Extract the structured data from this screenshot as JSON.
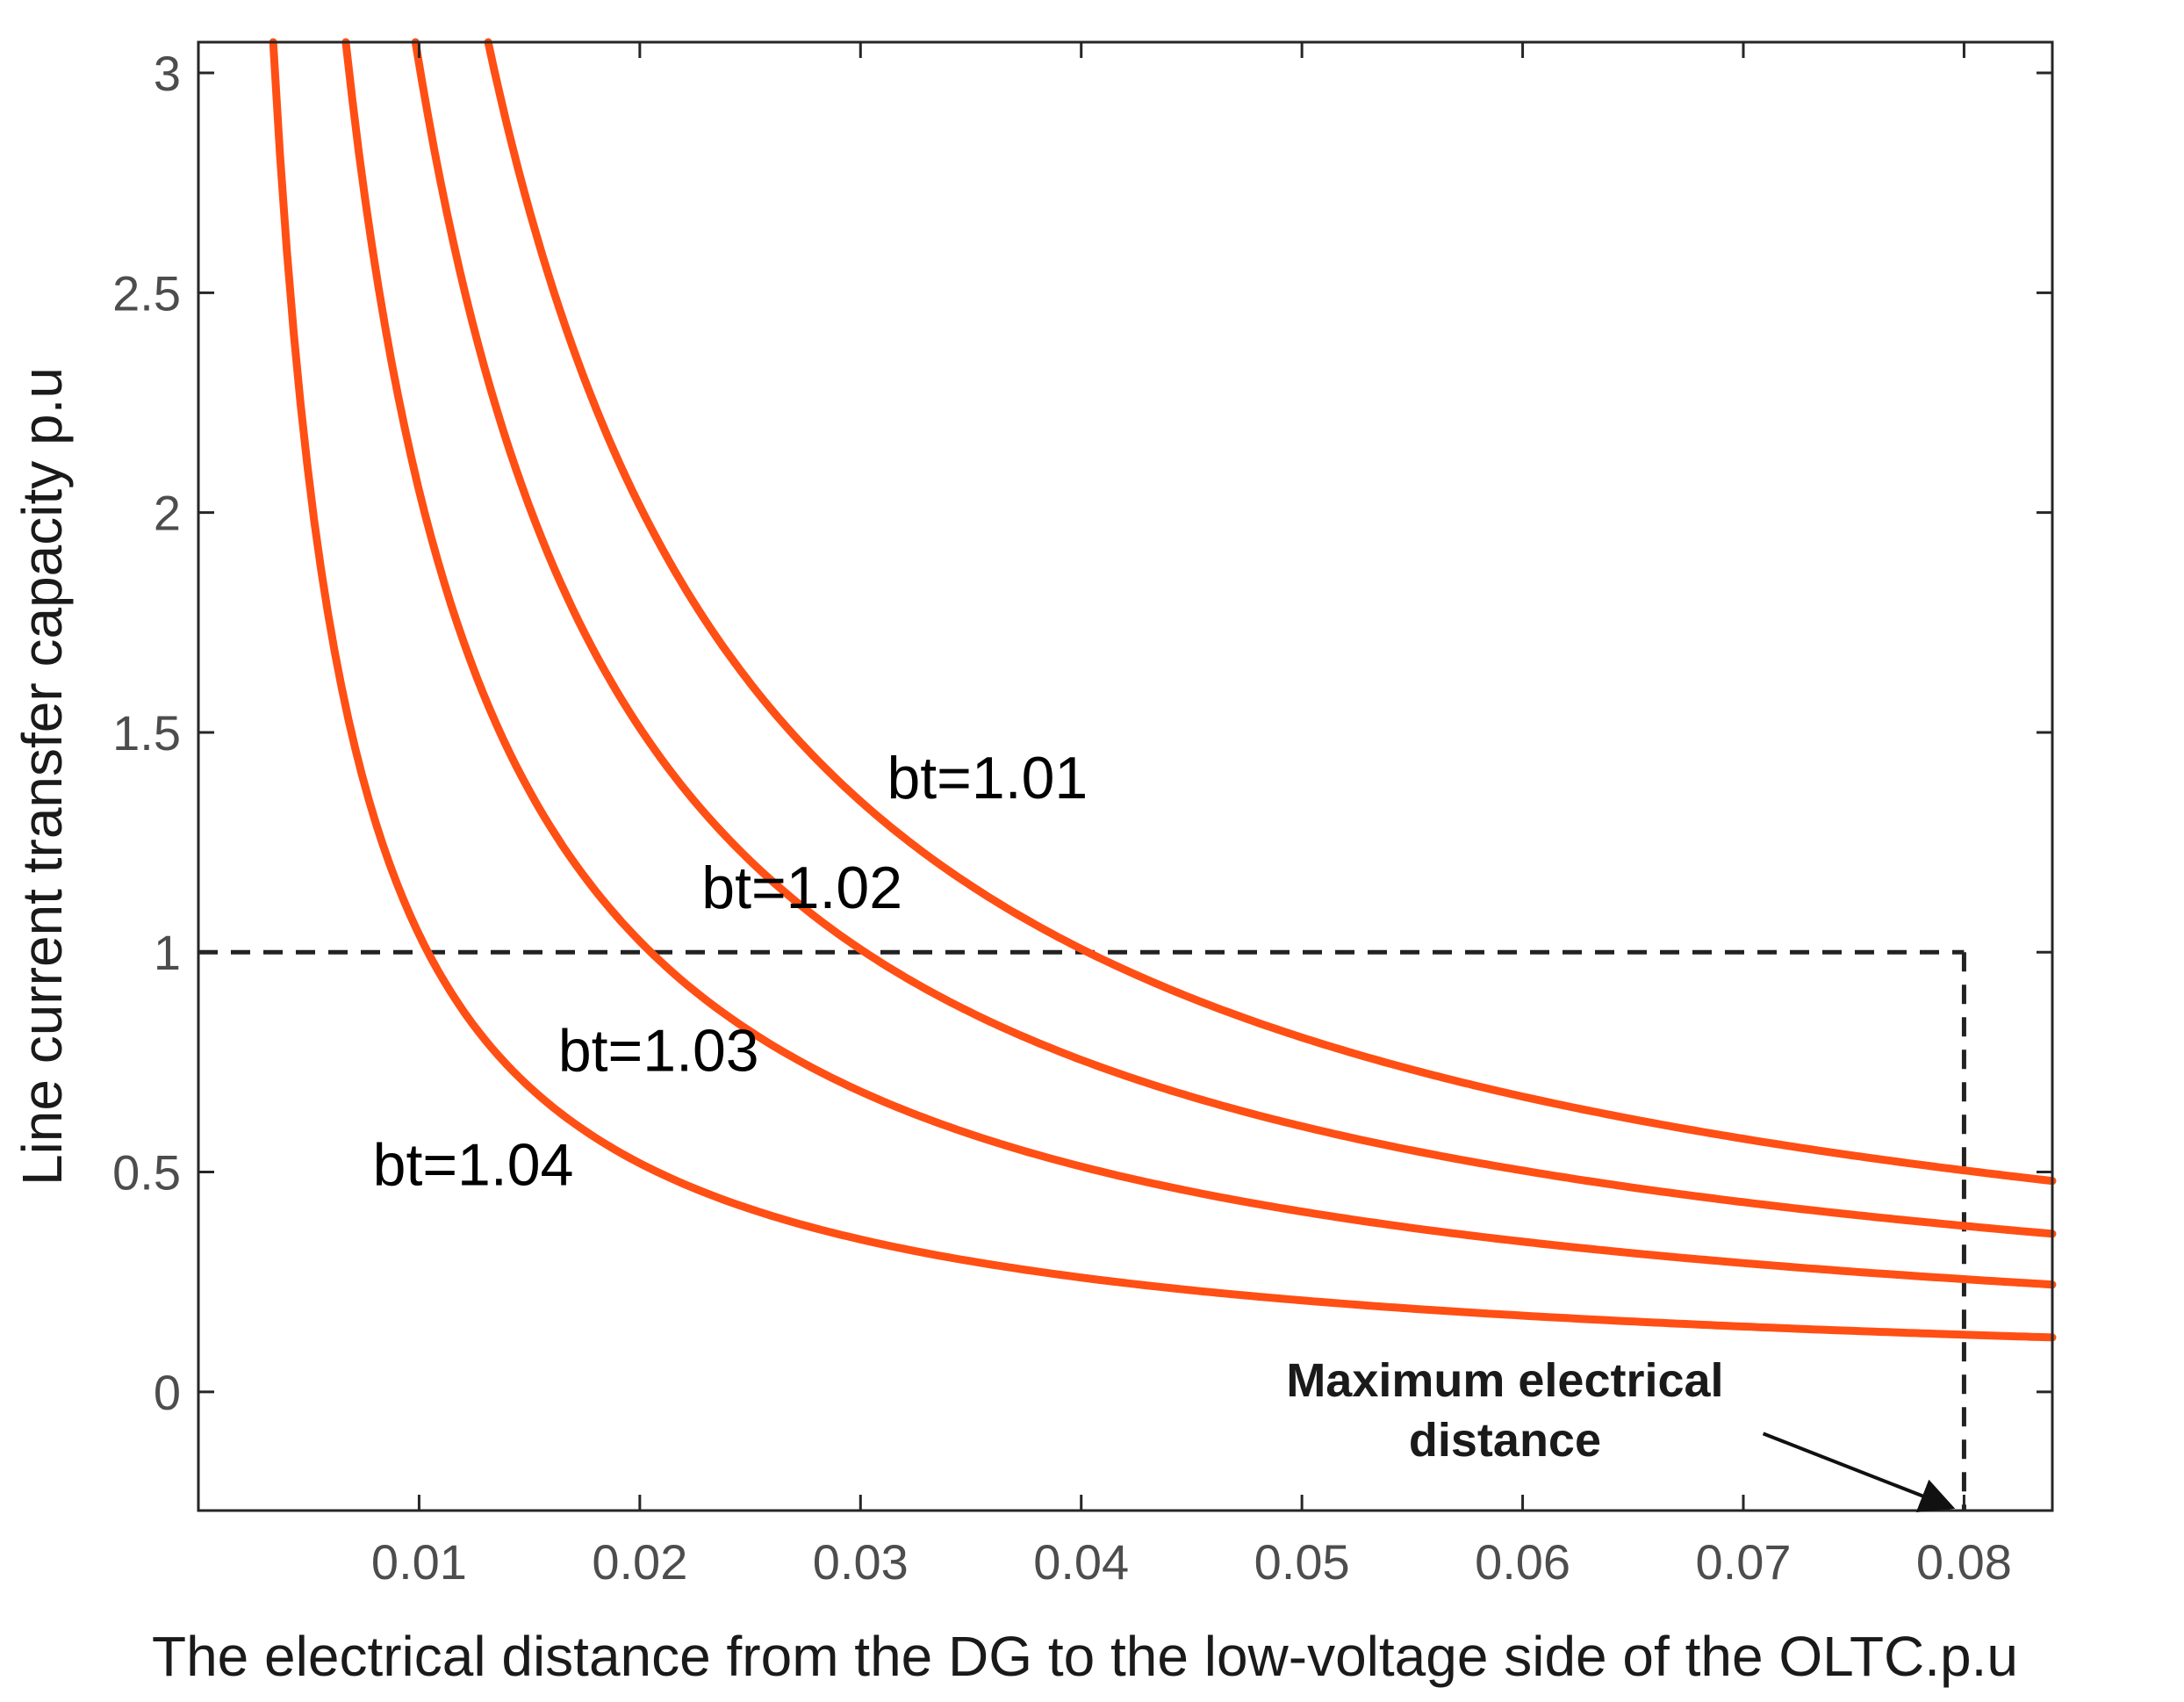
{
  "chart_data": {
    "type": "line",
    "title": "",
    "xlabel": "The electrical distance from the DG to the low-voltage side of the OLTC.p.u",
    "ylabel": "Line current transfer capacity p.u",
    "xlim": [
      0.0,
      0.084
    ],
    "ylim": [
      -0.27,
      3.07
    ],
    "xticks": [
      0.01,
      0.02,
      0.03,
      0.04,
      0.05,
      0.06,
      0.07,
      0.08
    ],
    "xtick_labels": [
      "0.01",
      "0.02",
      "0.03",
      "0.04",
      "0.05",
      "0.06",
      "0.07",
      "0.08"
    ],
    "yticks": [
      0,
      0.5,
      1,
      1.5,
      2,
      2.5,
      3
    ],
    "ytick_labels": [
      "0",
      "0.5",
      "1",
      "1.5",
      "2",
      "2.5",
      "3"
    ],
    "grid": false,
    "legend": "none",
    "series_color": "#ff4f14",
    "series": [
      {
        "name": "bt=1.01",
        "model": "y = k / x",
        "k": 0.0403,
        "x": [
          0.0134,
          0.015,
          0.02,
          0.03,
          0.04,
          0.05,
          0.06,
          0.07,
          0.08,
          0.084
        ],
        "y": [
          3.0,
          2.69,
          2.02,
          1.34,
          1.01,
          0.81,
          0.67,
          0.58,
          0.5,
          0.48
        ]
      },
      {
        "name": "bt=1.02",
        "model": "y = k / x",
        "k": 0.0302,
        "x": [
          0.0101,
          0.015,
          0.02,
          0.03,
          0.04,
          0.05,
          0.06,
          0.07,
          0.08,
          0.084
        ],
        "y": [
          3.0,
          2.01,
          1.51,
          1.01,
          0.76,
          0.6,
          0.5,
          0.43,
          0.38,
          0.36
        ]
      },
      {
        "name": "bt=1.03",
        "model": "y = k / x",
        "k": 0.0205,
        "x": [
          0.0068,
          0.01,
          0.015,
          0.02,
          0.03,
          0.04,
          0.05,
          0.06,
          0.07,
          0.08,
          0.084
        ],
        "y": [
          3.0,
          2.05,
          1.37,
          1.03,
          0.68,
          0.51,
          0.41,
          0.34,
          0.29,
          0.26,
          0.24
        ]
      },
      {
        "name": "bt=1.04",
        "model": "y = k / x",
        "k": 0.0104,
        "x": [
          0.0035,
          0.005,
          0.0104,
          0.015,
          0.02,
          0.03,
          0.04,
          0.05,
          0.06,
          0.07,
          0.08,
          0.084
        ],
        "y": [
          3.0,
          2.08,
          1.0,
          0.69,
          0.52,
          0.35,
          0.26,
          0.21,
          0.17,
          0.15,
          0.13,
          0.12
        ]
      }
    ],
    "reference_lines": {
      "horizontal_y": 1,
      "vertical_x": 0.08,
      "style": "dashed",
      "color": "#222222"
    },
    "series_labels": [
      {
        "text": "bt=1.01",
        "x": 0.0312,
        "y": 1.35
      },
      {
        "text": "bt=1.02",
        "x": 0.0228,
        "y": 1.1
      },
      {
        "text": "bt=1.03",
        "x": 0.0163,
        "y": 0.73
      },
      {
        "text": "bt=1.04",
        "x": 0.0079,
        "y": 0.47
      }
    ],
    "annotation": {
      "line1": "Maximum electrical",
      "line2": "distance",
      "text_x": 0.0592,
      "text_y": -0.01,
      "arrow_from": [
        0.0709,
        -0.095
      ],
      "arrow_to": [
        0.0793,
        -0.26
      ]
    }
  }
}
